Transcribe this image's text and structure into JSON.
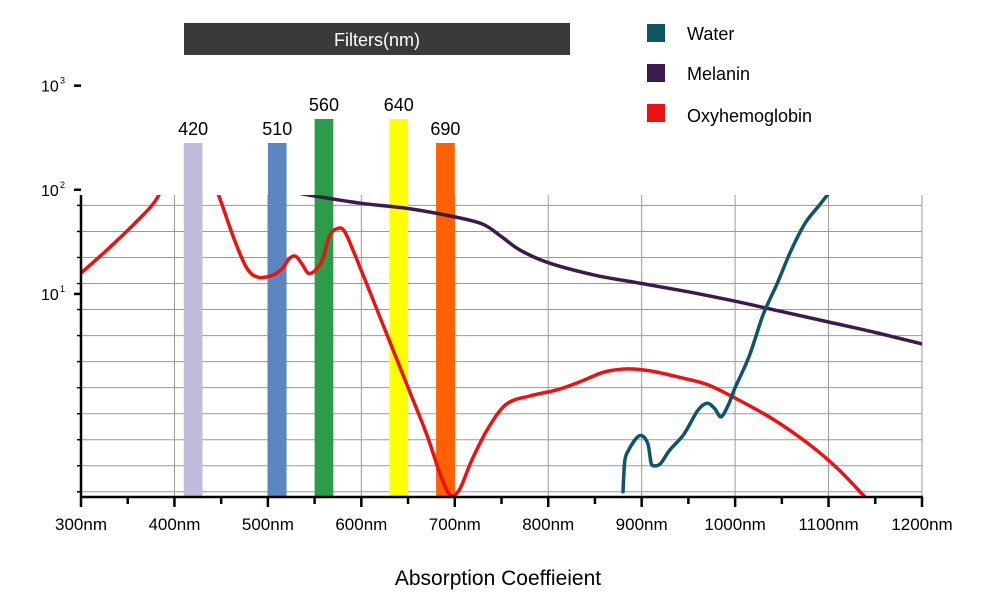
{
  "chart_data": {
    "type": "line",
    "title": "",
    "xlabel": "Absorption Coeffieient",
    "ylabel": "",
    "x_unit": "nm",
    "xlim": [
      300,
      1200
    ],
    "x_ticks": [
      300,
      400,
      500,
      600,
      700,
      800,
      900,
      1000,
      1100,
      1200
    ],
    "x_tick_labels": [
      "300nm",
      "400nm",
      "500nm",
      "600nm",
      "700nm",
      "800nm",
      "900nm",
      "1000nm",
      "1100nm",
      "1200nm"
    ],
    "y_scale": "log",
    "y_range_exp": [
      -0.95,
      1.95
    ],
    "y_ticks": [
      {
        "base": "10",
        "exp": "1",
        "value": 10
      },
      {
        "base": "10",
        "exp": "2",
        "value": 100
      },
      {
        "base": "10",
        "exp": "3",
        "value": 1000
      }
    ],
    "grid": true,
    "filters": {
      "header": "Filters(nm)",
      "header_color": "#3a3a3a",
      "bands": [
        {
          "label": "420",
          "center": 420,
          "width": 20,
          "color": "#c0bcdc",
          "label_level": "low"
        },
        {
          "label": "510",
          "center": 510,
          "width": 20,
          "color": "#5b86bf",
          "label_level": "low"
        },
        {
          "label": "560",
          "center": 560,
          "width": 20,
          "color": "#2a9c4a",
          "label_level": "high"
        },
        {
          "label": "640",
          "center": 640,
          "width": 20,
          "color": "#ffff00",
          "label_level": "high"
        },
        {
          "label": "690",
          "center": 690,
          "width": 20,
          "color": "#ff6000",
          "label_level": "low"
        }
      ]
    },
    "legend_position": "top-right",
    "series": [
      {
        "name": "Water",
        "color": "#0d5567",
        "points": [
          [
            880,
            -0.9
          ],
          [
            882,
            -0.6
          ],
          [
            886,
            -0.5
          ],
          [
            893,
            -0.4
          ],
          [
            898,
            -0.36
          ],
          [
            903,
            -0.38
          ],
          [
            907,
            -0.45
          ],
          [
            910,
            -0.62
          ],
          [
            913,
            -0.65
          ],
          [
            920,
            -0.63
          ],
          [
            930,
            -0.5
          ],
          [
            945,
            -0.35
          ],
          [
            960,
            -0.12
          ],
          [
            970,
            -0.05
          ],
          [
            978,
            -0.1
          ],
          [
            985,
            -0.18
          ],
          [
            993,
            -0.06
          ],
          [
            1000,
            0.1
          ],
          [
            1015,
            0.4
          ],
          [
            1030,
            0.8
          ],
          [
            1045,
            1.1
          ],
          [
            1060,
            1.42
          ],
          [
            1075,
            1.68
          ],
          [
            1090,
            1.85
          ],
          [
            1105,
            2.02
          ],
          [
            1120,
            2.18
          ],
          [
            1150,
            2.5
          ],
          [
            1180,
            2.82
          ],
          [
            1210,
            3.12
          ]
        ]
      },
      {
        "name": "Melanin",
        "color": "#3d1a4d",
        "points": [
          [
            300,
            2.25
          ],
          [
            350,
            2.17
          ],
          [
            400,
            2.11
          ],
          [
            430,
            2.1
          ],
          [
            460,
            2.07
          ],
          [
            500,
            2.02
          ],
          [
            550,
            1.94
          ],
          [
            600,
            1.87
          ],
          [
            650,
            1.82
          ],
          [
            700,
            1.74
          ],
          [
            730,
            1.67
          ],
          [
            750,
            1.55
          ],
          [
            770,
            1.42
          ],
          [
            800,
            1.3
          ],
          [
            850,
            1.18
          ],
          [
            900,
            1.1
          ],
          [
            950,
            1.02
          ],
          [
            1000,
            0.93
          ],
          [
            1050,
            0.83
          ],
          [
            1100,
            0.73
          ],
          [
            1150,
            0.63
          ],
          [
            1200,
            0.52
          ]
        ]
      },
      {
        "name": "Oxyhemoglobin",
        "color": "#ee1111",
        "points": [
          [
            300,
            1.2
          ],
          [
            330,
            1.44
          ],
          [
            360,
            1.7
          ],
          [
            380,
            1.9
          ],
          [
            395,
            2.18
          ],
          [
            405,
            2.4
          ],
          [
            415,
            2.48
          ],
          [
            425,
            2.44
          ],
          [
            435,
            2.24
          ],
          [
            450,
            1.88
          ],
          [
            465,
            1.5
          ],
          [
            478,
            1.24
          ],
          [
            490,
            1.16
          ],
          [
            505,
            1.18
          ],
          [
            515,
            1.24
          ],
          [
            523,
            1.34
          ],
          [
            530,
            1.36
          ],
          [
            537,
            1.28
          ],
          [
            543,
            1.2
          ],
          [
            550,
            1.22
          ],
          [
            558,
            1.32
          ],
          [
            566,
            1.56
          ],
          [
            575,
            1.63
          ],
          [
            582,
            1.6
          ],
          [
            592,
            1.4
          ],
          [
            610,
            1.0
          ],
          [
            630,
            0.55
          ],
          [
            650,
            0.1
          ],
          [
            670,
            -0.35
          ],
          [
            685,
            -0.75
          ],
          [
            695,
            -0.93
          ],
          [
            705,
            -0.88
          ],
          [
            718,
            -0.6
          ],
          [
            735,
            -0.3
          ],
          [
            755,
            -0.06
          ],
          [
            780,
            0.02
          ],
          [
            810,
            0.08
          ],
          [
            835,
            0.16
          ],
          [
            860,
            0.25
          ],
          [
            885,
            0.28
          ],
          [
            910,
            0.26
          ],
          [
            940,
            0.2
          ],
          [
            970,
            0.13
          ],
          [
            1000,
            0.0
          ],
          [
            1040,
            -0.2
          ],
          [
            1080,
            -0.45
          ],
          [
            1110,
            -0.68
          ],
          [
            1140,
            -0.96
          ]
        ]
      }
    ]
  }
}
